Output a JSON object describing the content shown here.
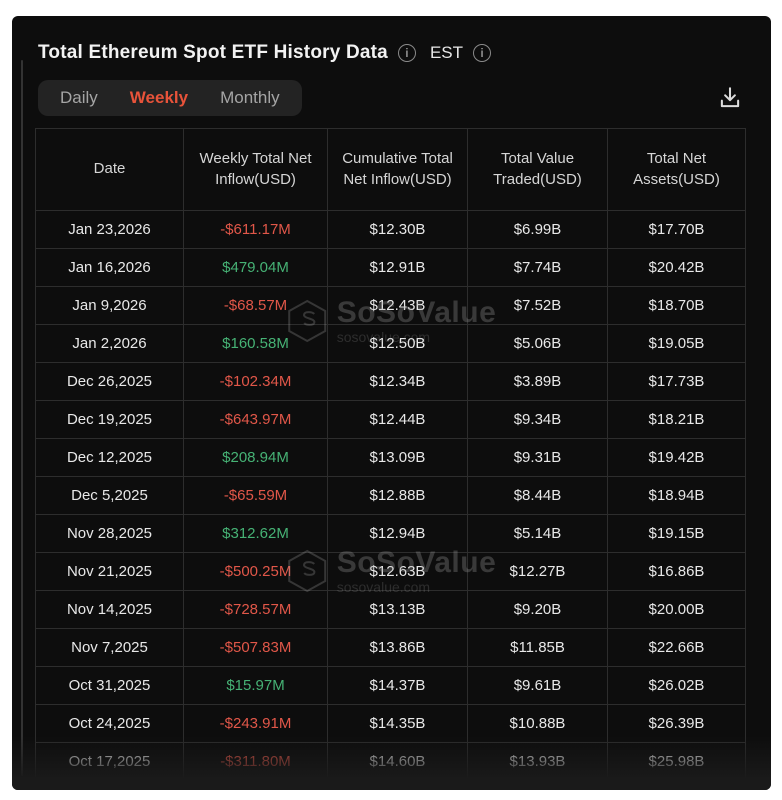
{
  "header": {
    "title": "Total Ethereum Spot ETF History Data",
    "timezone_label": "EST"
  },
  "tabs": [
    {
      "label": "Daily",
      "active": false
    },
    {
      "label": "Weekly",
      "active": true
    },
    {
      "label": "Monthly",
      "active": false
    }
  ],
  "toolbar": {
    "download_icon": "download"
  },
  "watermark": {
    "brand": "SoSoValue",
    "domain": "sosovalue.com"
  },
  "colors": {
    "panel_bg": "#0d0d0d",
    "tab_active": "#e8533a",
    "positive": "#46b275",
    "negative": "#e15749",
    "table_border": "#2d2d2d"
  },
  "table": {
    "columns": [
      "Date",
      "Weekly Total Net Inflow(USD)",
      "Cumulative Total Net Inflow(USD)",
      "Total Value Traded(USD)",
      "Total Net Assets(USD)"
    ],
    "cell_names": [
      "date-cell",
      "weekly-net-inflow-cell",
      "cumulative-net-inflow-cell",
      "value-traded-cell",
      "net-assets-cell"
    ],
    "rows": [
      {
        "cells": [
          "Jan 23,2026",
          "-$611.17M",
          "$12.30B",
          "$6.99B",
          "$17.70B"
        ],
        "inflow_trend": "negative"
      },
      {
        "cells": [
          "Jan 16,2026",
          "$479.04M",
          "$12.91B",
          "$7.74B",
          "$20.42B"
        ],
        "inflow_trend": "positive"
      },
      {
        "cells": [
          "Jan 9,2026",
          "-$68.57M",
          "$12.43B",
          "$7.52B",
          "$18.70B"
        ],
        "inflow_trend": "negative"
      },
      {
        "cells": [
          "Jan 2,2026",
          "$160.58M",
          "$12.50B",
          "$5.06B",
          "$19.05B"
        ],
        "inflow_trend": "positive"
      },
      {
        "cells": [
          "Dec 26,2025",
          "-$102.34M",
          "$12.34B",
          "$3.89B",
          "$17.73B"
        ],
        "inflow_trend": "negative"
      },
      {
        "cells": [
          "Dec 19,2025",
          "-$643.97M",
          "$12.44B",
          "$9.34B",
          "$18.21B"
        ],
        "inflow_trend": "negative"
      },
      {
        "cells": [
          "Dec 12,2025",
          "$208.94M",
          "$13.09B",
          "$9.31B",
          "$19.42B"
        ],
        "inflow_trend": "positive"
      },
      {
        "cells": [
          "Dec 5,2025",
          "-$65.59M",
          "$12.88B",
          "$8.44B",
          "$18.94B"
        ],
        "inflow_trend": "negative"
      },
      {
        "cells": [
          "Nov 28,2025",
          "$312.62M",
          "$12.94B",
          "$5.14B",
          "$19.15B"
        ],
        "inflow_trend": "positive"
      },
      {
        "cells": [
          "Nov 21,2025",
          "-$500.25M",
          "$12.63B",
          "$12.27B",
          "$16.86B"
        ],
        "inflow_trend": "negative"
      },
      {
        "cells": [
          "Nov 14,2025",
          "-$728.57M",
          "$13.13B",
          "$9.20B",
          "$20.00B"
        ],
        "inflow_trend": "negative"
      },
      {
        "cells": [
          "Nov 7,2025",
          "-$507.83M",
          "$13.86B",
          "$11.85B",
          "$22.66B"
        ],
        "inflow_trend": "negative"
      },
      {
        "cells": [
          "Oct 31,2025",
          "$15.97M",
          "$14.37B",
          "$9.61B",
          "$26.02B"
        ],
        "inflow_trend": "positive"
      },
      {
        "cells": [
          "Oct 24,2025",
          "-$243.91M",
          "$14.35B",
          "$10.88B",
          "$26.39B"
        ],
        "inflow_trend": "negative"
      },
      {
        "cells": [
          "Oct 17,2025",
          "-$311.80M",
          "$14.60B",
          "$13.93B",
          "$25.98B"
        ],
        "inflow_trend": "negative"
      }
    ]
  }
}
